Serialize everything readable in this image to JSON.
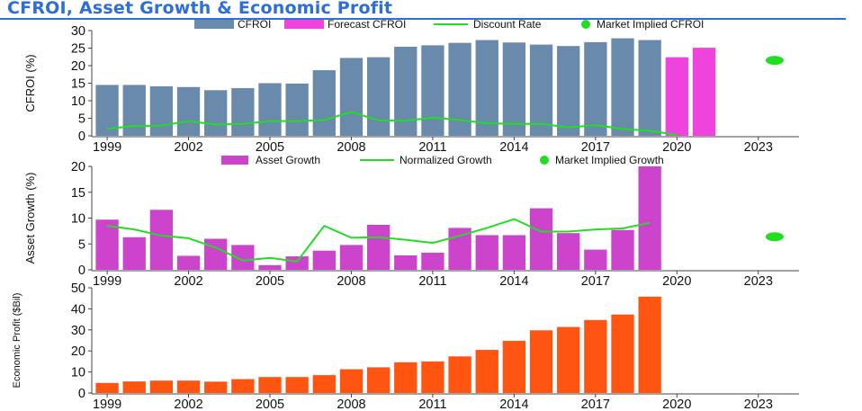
{
  "title": "CFROI, Asset Growth & Economic Profit",
  "colors": {
    "title": "#2c6fd6",
    "cfroi": "#6a8aab",
    "forecast": "#ee44dd",
    "discount": "#22dd22",
    "market_implied": "#22dd22",
    "asset_growth": "#cc44cc",
    "normalized": "#22dd22",
    "economic_profit": "#ff5511"
  },
  "chart_data": [
    {
      "type": "bar",
      "ylabel": "CFROI (%)",
      "ylim": [
        0,
        30
      ],
      "yticks": [
        0,
        5,
        10,
        15,
        20,
        25,
        30
      ],
      "xlim": [
        1998.5,
        2024.5
      ],
      "xticks": [
        1999,
        2002,
        2005,
        2008,
        2011,
        2014,
        2017,
        2020,
        2023
      ],
      "legend": {
        "placement": "top",
        "entries": [
          "CFROI",
          "Forecast CFROI",
          "Discount Rate",
          "Market Implied CFROI"
        ]
      },
      "series": [
        {
          "name": "CFROI",
          "kind": "bar",
          "color_key": "cfroi",
          "x": [
            1999,
            2000,
            2001,
            2002,
            2003,
            2004,
            2005,
            2006,
            2007,
            2008,
            2009,
            2010,
            2011,
            2012,
            2013,
            2014,
            2015,
            2016,
            2017,
            2018,
            2019
          ],
          "values": [
            14.5,
            14.5,
            14.1,
            13.9,
            13.0,
            13.6,
            15.0,
            14.9,
            18.7,
            22.2,
            22.4,
            25.4,
            25.8,
            26.5,
            27.3,
            26.6,
            26.0,
            25.6,
            26.7,
            27.8,
            27.3
          ]
        },
        {
          "name": "Forecast CFROI",
          "kind": "bar",
          "color_key": "forecast",
          "x": [
            2020,
            2021
          ],
          "values": [
            22.4,
            25.1
          ]
        },
        {
          "name": "Discount Rate",
          "kind": "line",
          "color_key": "discount",
          "x": [
            1999,
            2000,
            2001,
            2002,
            2003,
            2004,
            2005,
            2006,
            2007,
            2008,
            2009,
            2010,
            2011,
            2012,
            2013,
            2014,
            2015,
            2016,
            2017,
            2018,
            2019,
            2020
          ],
          "values": [
            2.0,
            2.8,
            2.9,
            4.2,
            3.2,
            3.4,
            4.2,
            4.2,
            4.5,
            6.8,
            4.4,
            4.3,
            5.2,
            4.5,
            3.6,
            3.4,
            3.4,
            2.4,
            3.0,
            2.0,
            1.4,
            0.3
          ]
        },
        {
          "name": "Market Implied CFROI",
          "kind": "point",
          "color_key": "market_implied",
          "x": [
            2024
          ],
          "values": [
            21.5
          ]
        }
      ]
    },
    {
      "type": "bar",
      "ylabel": "Asset Growth (%)",
      "ylim": [
        0,
        20
      ],
      "yticks": [
        0,
        5,
        10,
        15,
        20
      ],
      "xlim": [
        1998.5,
        2024.5
      ],
      "xticks": [
        1999,
        2002,
        2005,
        2008,
        2011,
        2014,
        2017,
        2020,
        2023
      ],
      "legend": {
        "placement": "top",
        "entries": [
          "Asset Growth",
          "Normalized Growth",
          "Market Implied Growth"
        ]
      },
      "series": [
        {
          "name": "Asset Growth",
          "kind": "bar",
          "color_key": "asset_growth",
          "x": [
            1999,
            2000,
            2001,
            2002,
            2003,
            2004,
            2005,
            2006,
            2007,
            2008,
            2009,
            2010,
            2011,
            2012,
            2013,
            2014,
            2015,
            2016,
            2017,
            2018,
            2019
          ],
          "values": [
            9.7,
            6.3,
            11.6,
            2.7,
            6.0,
            4.8,
            0.9,
            2.6,
            3.7,
            4.8,
            8.7,
            2.8,
            3.3,
            8.1,
            6.7,
            6.7,
            11.9,
            7.1,
            3.9,
            7.7,
            20.0
          ]
        },
        {
          "name": "Normalized Growth",
          "kind": "line",
          "color_key": "normalized",
          "x": [
            1999,
            2000,
            2001,
            2002,
            2003,
            2004,
            2005,
            2006,
            2007,
            2008,
            2009,
            2010,
            2011,
            2012,
            2013,
            2014,
            2015,
            2016,
            2017,
            2018,
            2019
          ],
          "values": [
            8.5,
            7.8,
            6.6,
            6.1,
            4.3,
            1.8,
            2.3,
            1.6,
            8.5,
            6.2,
            6.3,
            5.8,
            5.2,
            6.6,
            8.1,
            9.8,
            7.4,
            7.4,
            7.8,
            8.0,
            9.1
          ]
        },
        {
          "name": "Market Implied Growth",
          "kind": "point",
          "color_key": "market_implied",
          "x": [
            2024
          ],
          "values": [
            6.4
          ]
        }
      ]
    },
    {
      "type": "bar",
      "ylabel": "Economic Profit ($Bil)",
      "ylim": [
        0,
        50
      ],
      "yticks": [
        0,
        10,
        20,
        30,
        40,
        50
      ],
      "xlim": [
        1998.5,
        2024.5
      ],
      "xticks": [
        1999,
        2002,
        2005,
        2008,
        2011,
        2014,
        2017,
        2020,
        2023
      ],
      "series": [
        {
          "kind": "bar",
          "color_key": "economic_profit",
          "x": [
            1999,
            2000,
            2001,
            2002,
            2003,
            2004,
            2005,
            2006,
            2007,
            2008,
            2009,
            2010,
            2011,
            2012,
            2013,
            2014,
            2015,
            2016,
            2017,
            2018,
            2019
          ],
          "values": [
            4.8,
            5.5,
            5.9,
            5.9,
            5.4,
            6.6,
            7.6,
            7.6,
            8.5,
            11.3,
            12.2,
            14.6,
            15.0,
            17.4,
            20.5,
            24.8,
            29.8,
            31.4,
            34.7,
            37.3,
            45.8
          ]
        }
      ]
    }
  ]
}
